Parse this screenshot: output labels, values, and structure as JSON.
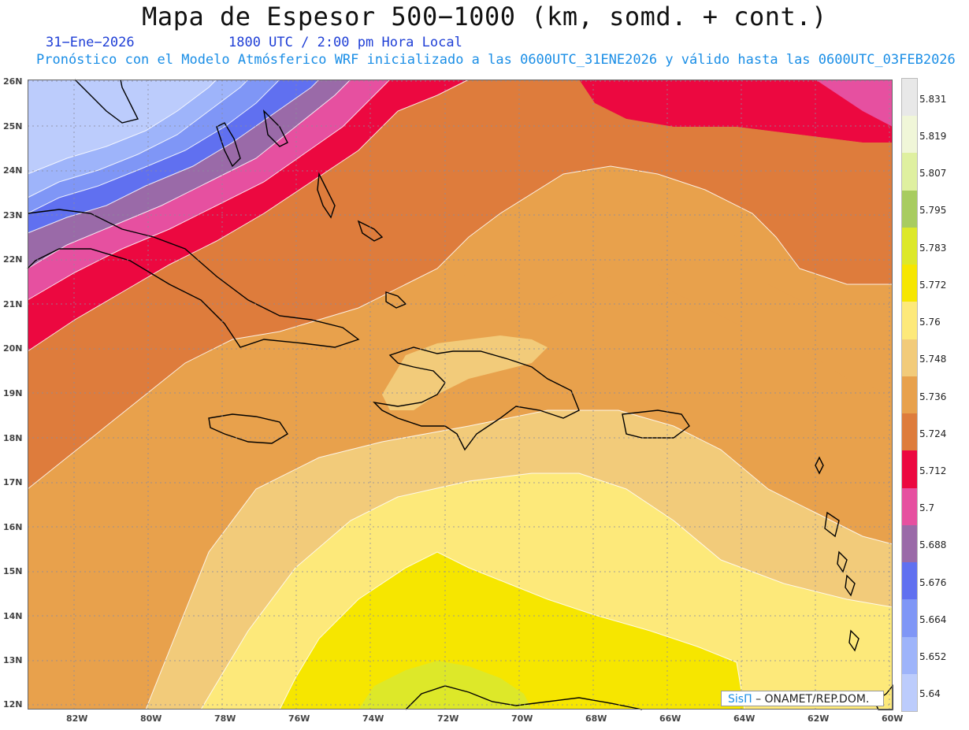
{
  "header": {
    "title": "Mapa de Espesor 500−1000 (km, somd. + cont.)",
    "date": "31−Ene−2026",
    "time": "1800 UTC / 2:00 pm Hora Local",
    "forecast_line": "Pronóstico con el Modelo Atmósferico WRF inicializado a las 0600UTC_31ENE2026 y válido hasta las  0600UTC_03FEB2026"
  },
  "axes": {
    "lat_labels": [
      "26N",
      "25N",
      "24N",
      "23N",
      "22N",
      "21N",
      "20N",
      "19N",
      "18N",
      "17N",
      "16N",
      "15N",
      "14N",
      "13N",
      "12N"
    ],
    "lon_labels": [
      "82W",
      "80W",
      "78W",
      "76W",
      "74W",
      "72W",
      "70W",
      "68W",
      "66W",
      "64W",
      "62W",
      "60W"
    ]
  },
  "legend": {
    "levels": [
      "5.831",
      "5.819",
      "5.807",
      "5.795",
      "5.783",
      "5.772",
      "5.76",
      "5.748",
      "5.736",
      "5.724",
      "5.712",
      "5.7",
      "5.688",
      "5.676",
      "5.664",
      "5.652",
      "5.64"
    ],
    "colors": [
      "#e8e8e8",
      "#f0f6d8",
      "#dff0a0",
      "#a8cc60",
      "#dde829",
      "#f6e600",
      "#fde97a",
      "#f2cb7a",
      "#e8a14c",
      "#de7c3c",
      "#ec0840",
      "#e650a0",
      "#9a6aa8",
      "#6070f0",
      "#7f96f6",
      "#9eb4fa",
      "#bcccfc"
    ]
  },
  "credit": {
    "logo": "SisΠ",
    "text": "– ONAMET/REP.DOM."
  },
  "colors": {
    "c5640": "#bcccfc",
    "c5652": "#9eb4fa",
    "c5664": "#7f96f6",
    "c5676": "#6070f0",
    "c5688": "#9a6aa8",
    "c5700": "#e650a0",
    "c5712": "#ec0840",
    "c5724": "#de7c3c",
    "c5736": "#e8a14c",
    "c5748": "#f2cb7a",
    "c5760": "#fde97a",
    "c5772": "#f6e600",
    "c5783": "#dde829"
  }
}
